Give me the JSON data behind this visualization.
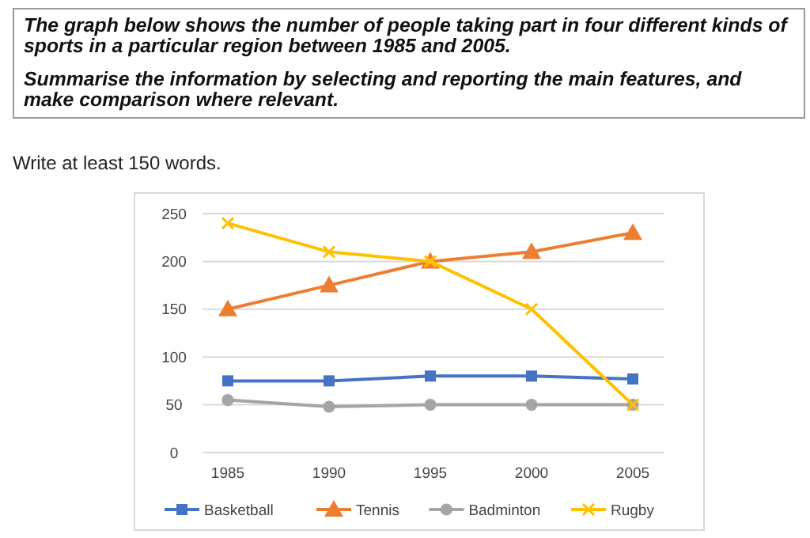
{
  "chart_data": {
    "type": "line",
    "title": "The graph below shows the number of people taking part in four different kinds of sports in a particular region between 1985 and 2005.",
    "subtitle": "Summarise the information by selecting and reporting the main features, and make comparison where relevant.",
    "annotations": [
      "Write at least 150 words."
    ],
    "categories": [
      "1985",
      "1990",
      "1995",
      "2000",
      "2005"
    ],
    "series": [
      {
        "name": "Basketball",
        "color": "#4472c4",
        "marker": "square",
        "values": [
          75,
          75,
          80,
          80,
          77
        ]
      },
      {
        "name": "Tennis",
        "color": "#ed7d31",
        "marker": "triangle",
        "values": [
          150,
          175,
          200,
          210,
          230
        ]
      },
      {
        "name": "Badminton",
        "color": "#a5a5a5",
        "marker": "circle",
        "values": [
          55,
          48,
          50,
          50,
          50
        ]
      },
      {
        "name": "Rugby",
        "color": "#ffc000",
        "marker": "cross",
        "values": [
          240,
          210,
          200,
          150,
          50
        ]
      }
    ],
    "ylim": [
      0,
      250
    ],
    "yticks": [
      0,
      50,
      100,
      150,
      200,
      250
    ],
    "grid": "y",
    "legend": "bottom",
    "line_style": "solid"
  }
}
